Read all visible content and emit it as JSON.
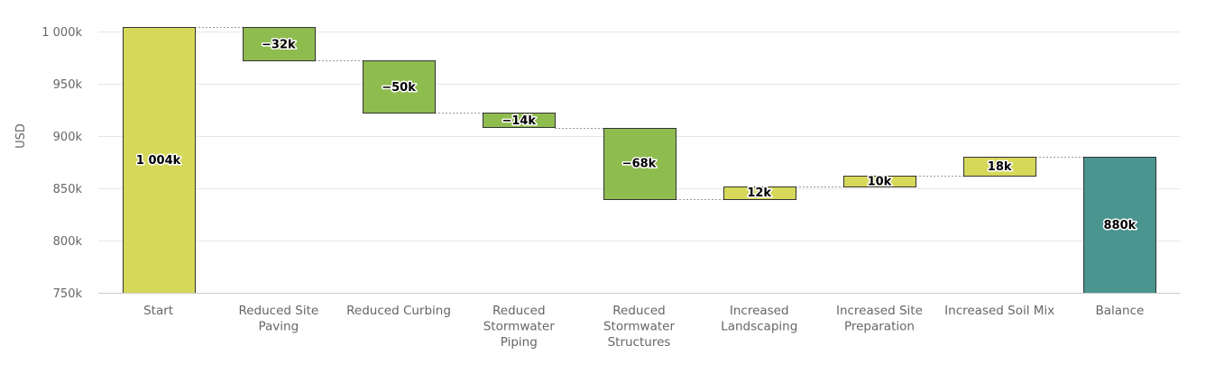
{
  "chart_data": {
    "type": "waterfall",
    "title": "",
    "ylabel": "USD",
    "ylim": [
      750,
      1010
    ],
    "yticks": [
      {
        "value": 1000,
        "label": "1 000k"
      },
      {
        "value": 950,
        "label": "950k"
      },
      {
        "value": 900,
        "label": "900k"
      },
      {
        "value": 850,
        "label": "850k"
      },
      {
        "value": 800,
        "label": "800k"
      },
      {
        "value": 750,
        "label": "750k"
      }
    ],
    "categories": [
      {
        "label": "Start",
        "lines": [
          "Start"
        ],
        "kind": "total",
        "value": 1004,
        "data_label": "1 004k",
        "color": "#d6d85a"
      },
      {
        "label": "Reduced Site Paving",
        "lines": [
          "Reduced Site",
          "Paving"
        ],
        "kind": "delta",
        "value": -32,
        "data_label": "−32k",
        "color": "#8fbc4f"
      },
      {
        "label": "Reduced Curbing",
        "lines": [
          "Reduced Curbing"
        ],
        "kind": "delta",
        "value": -50,
        "data_label": "−50k",
        "color": "#8fbc4f"
      },
      {
        "label": "Reduced Stormwater Piping",
        "lines": [
          "Reduced",
          "Stormwater",
          "Piping"
        ],
        "kind": "delta",
        "value": -14,
        "data_label": "−14k",
        "color": "#8fbc4f"
      },
      {
        "label": "Reduced Stormwater Structures",
        "lines": [
          "Reduced",
          "Stormwater",
          "Structures"
        ],
        "kind": "delta",
        "value": -68,
        "data_label": "−68k",
        "color": "#8fbc4f"
      },
      {
        "label": "Increased Landscaping",
        "lines": [
          "Increased",
          "Landscaping"
        ],
        "kind": "delta",
        "value": 12,
        "data_label": "12k",
        "color": "#d6d85a"
      },
      {
        "label": "Increased Site Preparation",
        "lines": [
          "Increased Site",
          "Preparation"
        ],
        "kind": "delta",
        "value": 10,
        "data_label": "10k",
        "color": "#d6d85a"
      },
      {
        "label": "Increased Soil Mix",
        "lines": [
          "Increased Soil Mix"
        ],
        "kind": "delta",
        "value": 18,
        "data_label": "18k",
        "color": "#d6d85a"
      },
      {
        "label": "Balance",
        "lines": [
          "Balance"
        ],
        "kind": "total",
        "value": 880,
        "data_label": "880k",
        "color": "#4a958f"
      }
    ],
    "grid": true,
    "legend": "none"
  }
}
